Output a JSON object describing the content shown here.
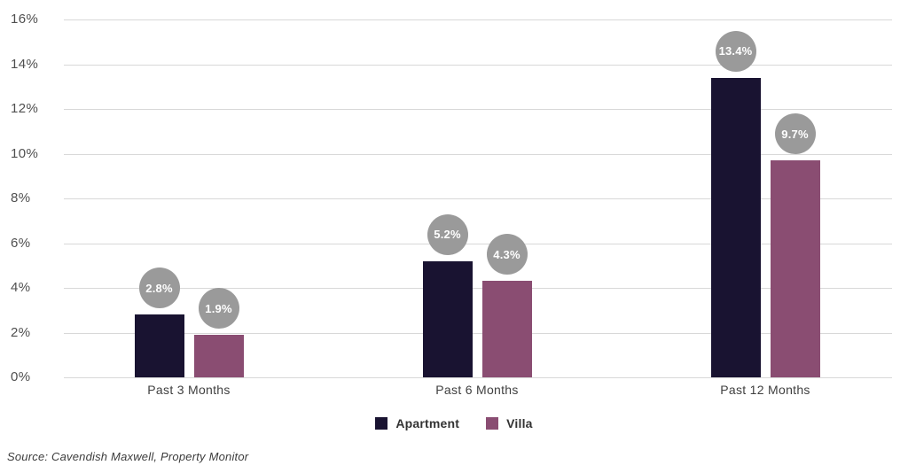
{
  "chart_data": {
    "type": "bar",
    "title": "",
    "xlabel": "",
    "ylabel": "",
    "categories": [
      "Past 3 Months",
      "Past 6 Months",
      "Past 12 Months"
    ],
    "series": [
      {
        "name": "Apartment",
        "color": "#191331",
        "values": [
          2.8,
          5.2,
          13.4
        ],
        "data_labels": [
          "2.8%",
          "5.2%",
          "13.4%"
        ]
      },
      {
        "name": "Villa",
        "color": "#8a4d72",
        "values": [
          1.9,
          4.3,
          9.7
        ],
        "data_labels": [
          "1.9%",
          "4.3%",
          "9.7%"
        ]
      }
    ],
    "y_axis": {
      "min": 0,
      "max": 16,
      "step": 2,
      "ticks": [
        "0%",
        "2%",
        "4%",
        "6%",
        "8%",
        "10%",
        "12%",
        "14%",
        "16%"
      ]
    },
    "grid": true,
    "legend_position": "bottom",
    "data_label_style": {
      "shape": "circle",
      "background": "#9a9a9a",
      "text_color": "#ffffff"
    }
  },
  "source_note": "Source: Cavendish Maxwell, Property Monitor",
  "colors": {
    "background": "#ffffff",
    "gridline": "#d8d8d8",
    "axis_text": "#4f4f4f",
    "category_text": "#3f3f3f",
    "legend_text": "#333333",
    "source_text": "#3c3c3c"
  }
}
